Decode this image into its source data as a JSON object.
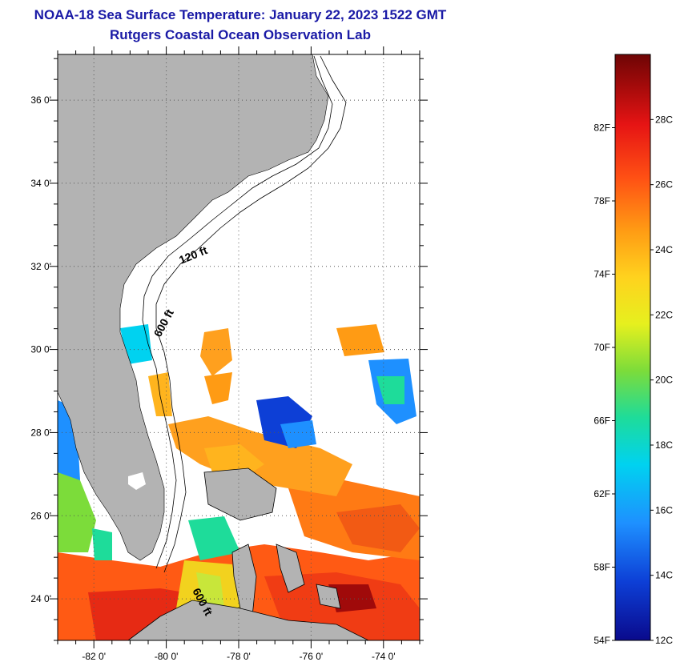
{
  "header": {
    "title": "NOAA-18 Sea Surface Temperature:  January 22, 2023 1522 GMT",
    "subtitle": "Rutgers Coastal Ocean Observation Lab"
  },
  "map": {
    "lat_ticks": [
      {
        "label": "36 0'",
        "value": 36
      },
      {
        "label": "34 0'",
        "value": 34
      },
      {
        "label": "32 0'",
        "value": 32
      },
      {
        "label": "30 0'",
        "value": 30
      },
      {
        "label": "28 0'",
        "value": 28
      },
      {
        "label": "26 0'",
        "value": 26
      },
      {
        "label": "24 0'",
        "value": 24
      }
    ],
    "lon_ticks": [
      {
        "label": "-82 0'",
        "value": -82
      },
      {
        "label": "-80 0'",
        "value": -80
      },
      {
        "label": "-78 0'",
        "value": -78
      },
      {
        "label": "-76 0'",
        "value": -76
      },
      {
        "label": "-74 0'",
        "value": -74
      }
    ],
    "lat_range": [
      23,
      37.1
    ],
    "lon_range": [
      -83,
      -73
    ],
    "grid": true,
    "contour_labels": [
      "120 ft",
      "600 ft",
      "600 ft"
    ],
    "land_color": "#b3b3b3",
    "no_data_color": "#ffffff"
  },
  "colorbar": {
    "fahrenheit_labels": [
      "82F",
      "78F",
      "74F",
      "70F",
      "66F",
      "62F",
      "58F",
      "54F"
    ],
    "celsius_labels": [
      "28C",
      "26C",
      "24C",
      "22C",
      "20C",
      "18C",
      "16C",
      "14C",
      "12C"
    ],
    "colors": [
      "#0a0a8c",
      "#0d3fd6",
      "#1e90ff",
      "#00d2f0",
      "#1edc9a",
      "#7cdc3a",
      "#e6f01e",
      "#ffd21e",
      "#ff9b14",
      "#ff5014",
      "#e61414",
      "#a00a0a",
      "#6e0505"
    ]
  }
}
